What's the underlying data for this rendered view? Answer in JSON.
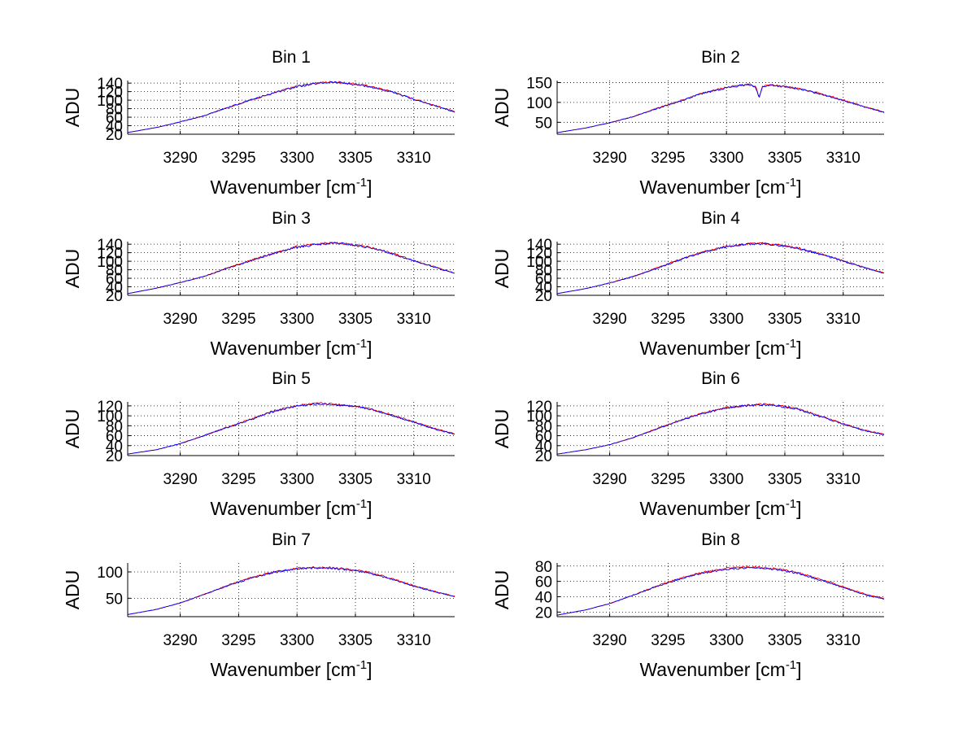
{
  "figure": {
    "background": "#ffffff",
    "grid": "dotted"
  },
  "chart_data": [
    {
      "type": "line",
      "title": "Bin 1",
      "xlabel": "Wavenumber [cm",
      "xlabel_sup": "-1",
      "xlabel_end": "]",
      "ylabel": "ADU",
      "xlim": [
        3285.5,
        3313.5
      ],
      "ylim": [
        20,
        146
      ],
      "xticks": [
        3290,
        3295,
        3300,
        3305,
        3310
      ],
      "yticks": [
        20,
        40,
        60,
        80,
        100,
        120,
        140
      ],
      "grid": true,
      "series": [
        {
          "color": "#ff0000",
          "x": [
            3285.5,
            3288,
            3290,
            3292,
            3294,
            3296,
            3298,
            3300,
            3302,
            3303,
            3304,
            3306,
            3308,
            3310,
            3312,
            3313.5
          ],
          "y": [
            24,
            36,
            49,
            63,
            82,
            100,
            117,
            133,
            141,
            143,
            141,
            134,
            121,
            103,
            86,
            73
          ]
        },
        {
          "color": "#0000ff",
          "x": [
            3285.5,
            3288,
            3290,
            3292,
            3294,
            3296,
            3298,
            3300,
            3302,
            3303,
            3304,
            3306,
            3308,
            3310,
            3312,
            3313.5
          ],
          "y": [
            24,
            36,
            49,
            63,
            82,
            100,
            117,
            132,
            140,
            142,
            140,
            133,
            120,
            102,
            85,
            72
          ]
        }
      ]
    },
    {
      "type": "line",
      "title": "Bin 2",
      "xlabel": "Wavenumber [cm",
      "xlabel_sup": "-1",
      "xlabel_end": "]",
      "ylabel": "ADU",
      "xlim": [
        3285.5,
        3313.5
      ],
      "ylim": [
        20,
        155
      ],
      "xticks": [
        3290,
        3295,
        3300,
        3305,
        3310
      ],
      "yticks": [
        50,
        100,
        150
      ],
      "grid": true,
      "series": [
        {
          "color": "#ff0000",
          "x": [
            3285.5,
            3288,
            3290,
            3292,
            3294,
            3296,
            3298,
            3300,
            3302,
            3302.5,
            3302.8,
            3303.1,
            3304,
            3306,
            3308,
            3310,
            3312,
            3313.5
          ],
          "y": [
            24,
            36,
            49,
            64,
            85,
            104,
            124,
            138,
            146,
            140,
            112,
            141,
            144,
            136,
            123,
            106,
            88,
            76
          ]
        },
        {
          "color": "#0000ff",
          "x": [
            3285.5,
            3288,
            3290,
            3292,
            3294,
            3296,
            3298,
            3300,
            3302,
            3302.5,
            3302.8,
            3303.1,
            3304,
            3306,
            3308,
            3310,
            3312,
            3313.5
          ],
          "y": [
            24,
            36,
            49,
            64,
            84,
            103,
            123,
            137,
            145,
            139,
            111,
            140,
            143,
            135,
            122,
            105,
            87,
            75
          ]
        }
      ]
    },
    {
      "type": "line",
      "title": "Bin 3",
      "xlabel": "Wavenumber [cm",
      "xlabel_sup": "-1",
      "xlabel_end": "]",
      "ylabel": "ADU",
      "xlim": [
        3285.5,
        3313.5
      ],
      "ylim": [
        20,
        146
      ],
      "xticks": [
        3290,
        3295,
        3300,
        3305,
        3310
      ],
      "yticks": [
        20,
        40,
        60,
        80,
        100,
        120,
        140
      ],
      "grid": true,
      "series": [
        {
          "color": "#ff0000",
          "x": [
            3285.5,
            3288,
            3290,
            3292,
            3294,
            3296,
            3298,
            3300,
            3302,
            3303,
            3304,
            3306,
            3308,
            3310,
            3312,
            3313.5
          ],
          "y": [
            24,
            37,
            50,
            64,
            84,
            102,
            119,
            134,
            141,
            143,
            142,
            134,
            120,
            102,
            85,
            72
          ]
        },
        {
          "color": "#0000ff",
          "x": [
            3285.5,
            3288,
            3290,
            3292,
            3294,
            3296,
            3298,
            3300,
            3302,
            3303,
            3304,
            3306,
            3308,
            3310,
            3312,
            3313.5
          ],
          "y": [
            24,
            37,
            50,
            64,
            83,
            101,
            118,
            133,
            140,
            142,
            141,
            133,
            119,
            101,
            84,
            71
          ]
        }
      ]
    },
    {
      "type": "line",
      "title": "Bin 4",
      "xlabel": "Wavenumber [cm",
      "xlabel_sup": "-1",
      "xlabel_end": "]",
      "ylabel": "ADU",
      "xlim": [
        3285.5,
        3313.5
      ],
      "ylim": [
        20,
        146
      ],
      "xticks": [
        3290,
        3295,
        3300,
        3305,
        3310
      ],
      "yticks": [
        20,
        40,
        60,
        80,
        100,
        120,
        140
      ],
      "grid": true,
      "series": [
        {
          "color": "#ff0000",
          "x": [
            3285.5,
            3288,
            3290,
            3292,
            3294,
            3296,
            3298,
            3300,
            3302,
            3303,
            3304,
            3306,
            3308,
            3310,
            3312,
            3313.5
          ],
          "y": [
            24,
            36,
            49,
            64,
            84,
            104,
            122,
            135,
            141,
            142,
            140,
            132,
            118,
            101,
            84,
            73
          ]
        },
        {
          "color": "#0000ff",
          "x": [
            3285.5,
            3288,
            3290,
            3292,
            3294,
            3296,
            3298,
            3300,
            3302,
            3303,
            3304,
            3306,
            3308,
            3310,
            3312,
            3313.5
          ],
          "y": [
            24,
            36,
            49,
            64,
            83,
            103,
            121,
            134,
            140,
            141,
            139,
            131,
            117,
            100,
            83,
            72
          ]
        }
      ]
    },
    {
      "type": "line",
      "title": "Bin 5",
      "xlabel": "Wavenumber [cm",
      "xlabel_sup": "-1",
      "xlabel_end": "]",
      "ylabel": "ADU",
      "xlim": [
        3285.5,
        3313.5
      ],
      "ylim": [
        20,
        128
      ],
      "xticks": [
        3290,
        3295,
        3300,
        3305,
        3310
      ],
      "yticks": [
        20,
        40,
        60,
        80,
        100,
        120
      ],
      "grid": true,
      "series": [
        {
          "color": "#ff0000",
          "x": [
            3285.5,
            3288,
            3290,
            3292,
            3294,
            3296,
            3298,
            3300,
            3302,
            3303,
            3304,
            3306,
            3308,
            3310,
            3312,
            3313.5
          ],
          "y": [
            23,
            32,
            44,
            60,
            77,
            93,
            110,
            121,
            125,
            124,
            122,
            116,
            103,
            88,
            73,
            64
          ]
        },
        {
          "color": "#0000ff",
          "x": [
            3285.5,
            3288,
            3290,
            3292,
            3294,
            3296,
            3298,
            3300,
            3302,
            3303,
            3304,
            3306,
            3308,
            3310,
            3312,
            3313.5
          ],
          "y": [
            23,
            32,
            44,
            60,
            76,
            92,
            109,
            120,
            124,
            123,
            121,
            115,
            102,
            87,
            72,
            63
          ]
        }
      ]
    },
    {
      "type": "line",
      "title": "Bin 6",
      "xlabel": "Wavenumber [cm",
      "xlabel_sup": "-1",
      "xlabel_end": "]",
      "ylabel": "ADU",
      "xlim": [
        3285.5,
        3313.5
      ],
      "ylim": [
        20,
        128
      ],
      "xticks": [
        3290,
        3295,
        3300,
        3305,
        3310
      ],
      "yticks": [
        20,
        40,
        60,
        80,
        100,
        120
      ],
      "grid": true,
      "series": [
        {
          "color": "#ff0000",
          "x": [
            3285.5,
            3288,
            3290,
            3292,
            3294,
            3296,
            3298,
            3300,
            3302,
            3303,
            3304,
            3306,
            3308,
            3310,
            3312,
            3313.5
          ],
          "y": [
            23,
            32,
            42,
            56,
            74,
            91,
            106,
            117,
            122,
            123,
            122,
            115,
            100,
            84,
            70,
            63
          ]
        },
        {
          "color": "#0000ff",
          "x": [
            3285.5,
            3288,
            3290,
            3292,
            3294,
            3296,
            3298,
            3300,
            3302,
            3303,
            3304,
            3306,
            3308,
            3310,
            3312,
            3313.5
          ],
          "y": [
            23,
            32,
            42,
            56,
            73,
            90,
            105,
            116,
            121,
            122,
            121,
            114,
            99,
            83,
            69,
            62
          ]
        }
      ]
    },
    {
      "type": "line",
      "title": "Bin 7",
      "xlabel": "Wavenumber [cm",
      "xlabel_sup": "-1",
      "xlabel_end": "]",
      "ylabel": "ADU",
      "xlim": [
        3285.5,
        3313.5
      ],
      "ylim": [
        15,
        117
      ],
      "xticks": [
        3290,
        3295,
        3300,
        3305,
        3310
      ],
      "yticks": [
        50,
        100
      ],
      "grid": true,
      "series": [
        {
          "color": "#ff0000",
          "x": [
            3285.5,
            3288,
            3290,
            3292,
            3294,
            3296,
            3298,
            3300,
            3302,
            3303,
            3304,
            3306,
            3308,
            3310,
            3312,
            3313.5
          ],
          "y": [
            19,
            29,
            41,
            57,
            74,
            89,
            100,
            107,
            109,
            108,
            106,
            100,
            88,
            74,
            62,
            54
          ]
        },
        {
          "color": "#0000ff",
          "x": [
            3285.5,
            3288,
            3290,
            3292,
            3294,
            3296,
            3298,
            3300,
            3302,
            3303,
            3304,
            3306,
            3308,
            3310,
            3312,
            3313.5
          ],
          "y": [
            19,
            29,
            41,
            57,
            73,
            88,
            99,
            106,
            108,
            107,
            105,
            99,
            87,
            73,
            61,
            53
          ]
        }
      ]
    },
    {
      "type": "line",
      "title": "Bin 8",
      "xlabel": "Wavenumber [cm",
      "xlabel_sup": "-1",
      "xlabel_end": "]",
      "ylabel": "ADU",
      "xlim": [
        3285.5,
        3313.5
      ],
      "ylim": [
        14,
        84
      ],
      "xticks": [
        3290,
        3295,
        3300,
        3305,
        3310
      ],
      "yticks": [
        20,
        40,
        60,
        80
      ],
      "grid": true,
      "series": [
        {
          "color": "#ff0000",
          "x": [
            3285.5,
            3288,
            3290,
            3292,
            3294,
            3296,
            3298,
            3300,
            3302,
            3303,
            3304,
            3306,
            3308,
            3310,
            3312,
            3313.5
          ],
          "y": [
            16,
            23,
            31,
            42,
            54,
            64,
            72,
            77,
            79,
            78,
            77,
            72,
            63,
            53,
            43,
            38
          ]
        },
        {
          "color": "#0000ff",
          "x": [
            3285.5,
            3288,
            3290,
            3292,
            3294,
            3296,
            3298,
            3300,
            3302,
            3303,
            3304,
            3306,
            3308,
            3310,
            3312,
            3313.5
          ],
          "y": [
            16,
            23,
            31,
            42,
            53,
            63,
            71,
            76,
            78,
            77,
            76,
            71,
            62,
            52,
            42,
            37
          ]
        }
      ]
    }
  ]
}
